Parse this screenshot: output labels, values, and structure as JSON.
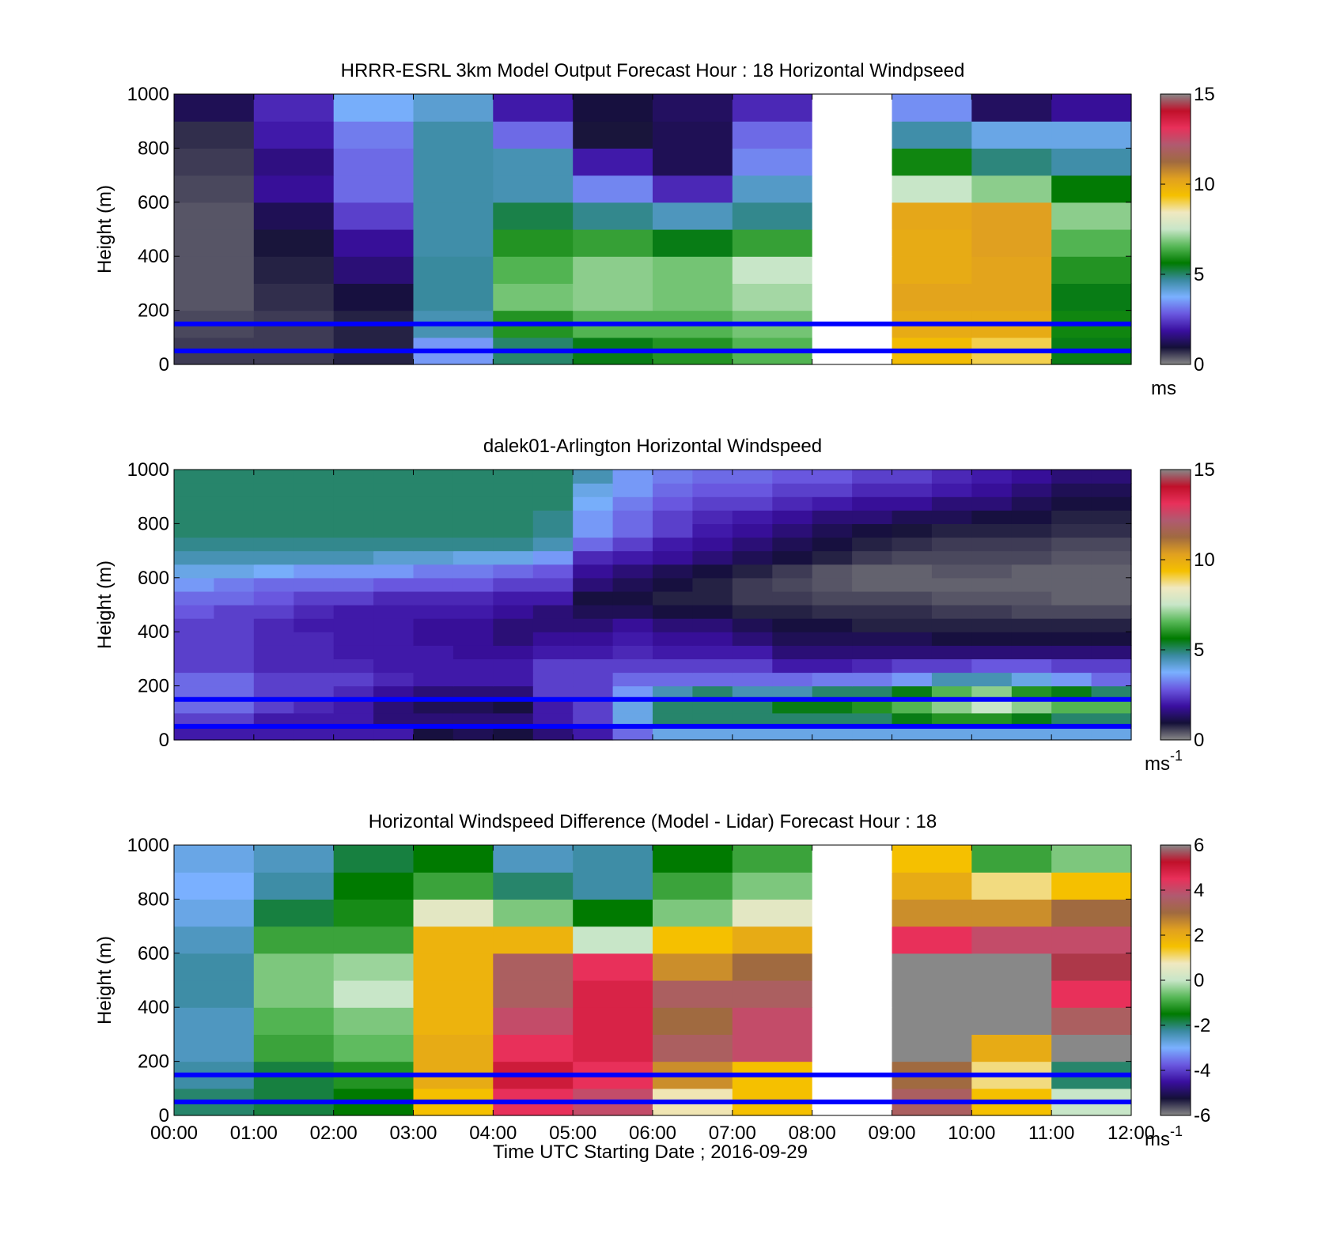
{
  "figure": {
    "xlabel": "Time UTC  Starting Date ; 2016-09-29"
  },
  "colors": {
    "cbar_stops_wind": [
      "#888888",
      "#141038",
      "#3a0fa0",
      "#6a58e0",
      "#7ab0ff",
      "#3a8aa0",
      "#007a00",
      "#58b858",
      "#c8e6c8",
      "#f0e8c0",
      "#f5c000",
      "#e0a020",
      "#a06a40",
      "#b05a70",
      "#e8305a",
      "#c0102a",
      "#888888"
    ],
    "overlay_line": "#0000ff"
  },
  "chart_data": [
    {
      "type": "heatmap",
      "title": "HRRR-ESRL 3km Model Output   Forecast Hour : 18 Horizontal Windpseed",
      "ylabel": "Height (m)",
      "ylim": [
        0,
        1000
      ],
      "yticks": [
        "0",
        "200",
        "400",
        "600",
        "800",
        "1000"
      ],
      "xlim": [
        0,
        12
      ],
      "xticks": [
        "00:00",
        "01:00",
        "02:00",
        "03:00",
        "04:00",
        "05:00",
        "06:00",
        "07:00",
        "08:00",
        "09:00",
        "10:00",
        "11:00",
        "12:00"
      ],
      "show_xtick_labels": false,
      "x": [
        0,
        1,
        2,
        3,
        4,
        5,
        6,
        7,
        8,
        9,
        10,
        11
      ],
      "heights": [
        50,
        150,
        250,
        350,
        450,
        550,
        650,
        750,
        850,
        950
      ],
      "z": [
        [
          0.6,
          0.6,
          0.8,
          3.5,
          5.0,
          5.5,
          6.0,
          6.5,
          null,
          9.5,
          9.0,
          5.5
        ],
        [
          0.5,
          0.6,
          0.8,
          4.5,
          6.0,
          6.5,
          6.5,
          6.8,
          null,
          10.0,
          10.0,
          5.8
        ],
        [
          0.4,
          0.7,
          1.0,
          4.7,
          6.8,
          7.0,
          6.8,
          7.2,
          null,
          10.2,
          10.2,
          5.5
        ],
        [
          0.4,
          0.8,
          1.5,
          4.7,
          6.5,
          7.0,
          6.8,
          7.5,
          null,
          10.0,
          10.2,
          6.0
        ],
        [
          0.4,
          0.9,
          1.8,
          4.6,
          6.0,
          6.2,
          5.5,
          6.2,
          null,
          10.0,
          10.3,
          6.5
        ],
        [
          0.4,
          1.2,
          2.5,
          4.6,
          5.2,
          4.8,
          4.4,
          4.8,
          null,
          10.1,
          10.3,
          7.0
        ],
        [
          0.5,
          1.8,
          3.0,
          4.6,
          4.5,
          3.3,
          2.2,
          4.3,
          null,
          7.5,
          7.0,
          5.6
        ],
        [
          0.6,
          1.6,
          3.0,
          4.6,
          4.5,
          2.0,
          1.2,
          3.3,
          null,
          5.8,
          4.9,
          4.6
        ],
        [
          0.7,
          2.0,
          3.2,
          4.6,
          3.0,
          0.9,
          1.2,
          3.0,
          null,
          4.6,
          4.0,
          4.0
        ],
        [
          1.2,
          2.2,
          3.8,
          4.2,
          2.0,
          1.0,
          1.3,
          2.2,
          null,
          3.4,
          1.3,
          1.8
        ]
      ],
      "colorbar": {
        "min": 0,
        "max": 15,
        "ticks": [
          "0",
          "5",
          "10",
          "15"
        ],
        "unit": "ms",
        "unit_sup": ""
      },
      "overlay_lines_height": [
        50,
        150
      ]
    },
    {
      "type": "heatmap",
      "title": "dalek01-Arlington  Horizontal Windspeed",
      "ylabel": "Height (m)",
      "ylim": [
        0,
        1000
      ],
      "yticks": [
        "0",
        "200",
        "400",
        "600",
        "800",
        "1000"
      ],
      "xlim": [
        0,
        12
      ],
      "xticks": [
        "00:00",
        "01:00",
        "02:00",
        "03:00",
        "04:00",
        "05:00",
        "06:00",
        "07:00",
        "08:00",
        "09:00",
        "10:00",
        "11:00",
        "12:00"
      ],
      "show_xtick_labels": false,
      "x": [
        0,
        0.5,
        1,
        1.5,
        2,
        2.5,
        3,
        3.5,
        4,
        4.5,
        5,
        5.5,
        6,
        6.5,
        7,
        7.5,
        8,
        8.5,
        9,
        9.5,
        10,
        10.5,
        11,
        11.5
      ],
      "heights": [
        25,
        75,
        125,
        175,
        225,
        275,
        325,
        375,
        425,
        475,
        525,
        575,
        625,
        675,
        725,
        775,
        825,
        875,
        925,
        975
      ],
      "z": [
        [
          2.0,
          2.0,
          2.0,
          2.0,
          2.0,
          2.0,
          1.0,
          1.2,
          1.0,
          1.5,
          2.0,
          3.0,
          4.0,
          4.0,
          4.0,
          4.0,
          4.0,
          4.0,
          4.0,
          4.0,
          4.0,
          4.0,
          4.0,
          4.0
        ],
        [
          2.5,
          2.5,
          2.0,
          2.0,
          2.0,
          1.5,
          1.5,
          1.5,
          1.5,
          2.0,
          2.5,
          4.0,
          5.0,
          5.0,
          5.0,
          5.0,
          5.0,
          5.0,
          5.5,
          6.0,
          6.0,
          5.5,
          5.0,
          5.0
        ],
        [
          3.0,
          3.0,
          2.5,
          2.2,
          2.0,
          1.5,
          1.2,
          1.2,
          1.0,
          2.0,
          2.5,
          4.0,
          5.0,
          5.0,
          5.0,
          5.5,
          5.5,
          6.0,
          6.5,
          7.0,
          7.5,
          7.0,
          6.5,
          6.5
        ],
        [
          3.0,
          3.0,
          2.5,
          2.5,
          2.2,
          1.8,
          1.5,
          1.5,
          1.5,
          2.5,
          2.5,
          3.5,
          4.5,
          5.0,
          4.5,
          4.5,
          5.0,
          5.0,
          5.5,
          6.5,
          7.0,
          6.0,
          5.5,
          5.0
        ],
        [
          3.0,
          3.0,
          2.5,
          2.5,
          2.5,
          2.2,
          2.0,
          2.0,
          2.0,
          2.5,
          2.5,
          3.0,
          3.0,
          3.0,
          3.0,
          3.0,
          3.2,
          3.2,
          3.5,
          4.5,
          4.5,
          4.0,
          3.5,
          3.0
        ],
        [
          2.5,
          2.5,
          2.2,
          2.2,
          2.2,
          2.0,
          2.0,
          2.0,
          2.0,
          2.5,
          2.5,
          2.5,
          2.5,
          2.5,
          2.5,
          2.0,
          2.0,
          2.2,
          2.5,
          2.5,
          2.8,
          2.8,
          2.5,
          2.5
        ],
        [
          2.5,
          2.5,
          2.2,
          2.2,
          2.0,
          2.0,
          2.0,
          1.8,
          1.8,
          2.0,
          2.0,
          2.2,
          2.0,
          2.0,
          2.0,
          1.5,
          1.5,
          1.5,
          1.5,
          1.5,
          1.5,
          1.5,
          1.5,
          1.5
        ],
        [
          2.5,
          2.5,
          2.2,
          2.2,
          2.0,
          2.0,
          1.8,
          1.8,
          1.5,
          1.8,
          1.8,
          2.0,
          1.8,
          1.8,
          1.5,
          1.2,
          1.2,
          1.2,
          1.2,
          1.0,
          1.0,
          1.0,
          1.0,
          1.0
        ],
        [
          2.5,
          2.5,
          2.2,
          2.0,
          2.0,
          2.0,
          1.8,
          1.8,
          1.5,
          1.5,
          1.5,
          1.8,
          1.5,
          1.5,
          1.2,
          1.0,
          1.0,
          0.8,
          0.8,
          0.8,
          0.8,
          0.8,
          0.8,
          0.8
        ],
        [
          2.8,
          2.5,
          2.5,
          2.2,
          2.0,
          2.0,
          2.0,
          2.0,
          1.8,
          1.5,
          1.2,
          1.2,
          1.0,
          1.0,
          0.8,
          0.8,
          0.7,
          0.7,
          0.7,
          0.6,
          0.6,
          0.5,
          0.5,
          0.5
        ],
        [
          3.0,
          3.0,
          2.8,
          2.5,
          2.5,
          2.2,
          2.2,
          2.2,
          2.0,
          2.0,
          1.0,
          1.0,
          0.8,
          0.8,
          0.6,
          0.6,
          0.5,
          0.5,
          0.5,
          0.4,
          0.4,
          0.4,
          0.3,
          0.3
        ],
        [
          3.5,
          3.2,
          3.0,
          3.0,
          3.0,
          2.8,
          2.8,
          2.8,
          2.5,
          2.5,
          1.5,
          1.2,
          1.0,
          0.8,
          0.6,
          0.5,
          0.4,
          0.3,
          0.3,
          0.3,
          0.3,
          0.3,
          0.3,
          0.3
        ],
        [
          4.0,
          4.0,
          3.8,
          3.5,
          3.5,
          3.5,
          3.2,
          3.2,
          3.0,
          2.8,
          1.8,
          1.5,
          1.2,
          1.0,
          0.8,
          0.6,
          0.4,
          0.3,
          0.3,
          0.4,
          0.4,
          0.3,
          0.3,
          0.3
        ],
        [
          4.5,
          4.5,
          4.5,
          4.5,
          4.5,
          4.2,
          4.2,
          4.0,
          4.0,
          3.5,
          2.2,
          2.0,
          1.8,
          1.5,
          1.2,
          1.0,
          0.8,
          0.6,
          0.5,
          0.5,
          0.5,
          0.5,
          0.4,
          0.4
        ],
        [
          4.8,
          4.8,
          4.8,
          4.8,
          4.8,
          4.8,
          4.8,
          4.8,
          4.8,
          4.5,
          3.0,
          2.5,
          2.0,
          1.8,
          1.5,
          1.2,
          1.0,
          0.8,
          0.7,
          0.6,
          0.6,
          0.6,
          0.5,
          0.5
        ],
        [
          5.0,
          5.0,
          5.0,
          5.0,
          5.0,
          5.0,
          5.0,
          5.0,
          5.0,
          4.8,
          3.5,
          3.0,
          2.5,
          2.0,
          1.8,
          1.5,
          1.2,
          1.0,
          0.9,
          0.8,
          0.8,
          0.8,
          0.7,
          0.7
        ],
        [
          5.0,
          5.0,
          5.0,
          5.0,
          5.0,
          5.0,
          5.0,
          5.0,
          5.0,
          4.8,
          3.5,
          3.0,
          2.5,
          2.2,
          2.0,
          1.8,
          1.5,
          1.5,
          1.2,
          1.2,
          1.0,
          1.0,
          0.8,
          0.8
        ],
        [
          5.0,
          5.0,
          5.0,
          5.0,
          5.0,
          5.0,
          5.0,
          5.0,
          5.0,
          5.0,
          3.8,
          3.2,
          2.8,
          2.5,
          2.5,
          2.2,
          2.0,
          1.8,
          1.8,
          1.5,
          1.5,
          1.2,
          1.0,
          1.0
        ],
        [
          5.0,
          5.0,
          5.0,
          5.0,
          5.0,
          5.0,
          5.0,
          5.0,
          5.0,
          5.0,
          4.0,
          3.5,
          3.0,
          2.8,
          2.8,
          2.5,
          2.5,
          2.2,
          2.2,
          2.0,
          1.8,
          1.5,
          1.2,
          1.2
        ],
        [
          5.0,
          5.0,
          5.0,
          5.0,
          5.0,
          5.0,
          5.0,
          5.0,
          5.0,
          5.0,
          4.5,
          3.5,
          3.2,
          3.0,
          3.0,
          2.8,
          2.8,
          2.5,
          2.5,
          2.2,
          2.0,
          1.8,
          1.5,
          1.5
        ]
      ],
      "colorbar": {
        "min": 0,
        "max": 15,
        "ticks": [
          "0",
          "5",
          "10",
          "15"
        ],
        "unit": "ms",
        "unit_sup": "-1"
      },
      "overlay_lines_height": [
        50,
        150
      ]
    },
    {
      "type": "heatmap",
      "title": "Horizontal Windspeed Difference (Model - Lidar) Forecast Hour : 18",
      "ylabel": "Height (m)",
      "ylim": [
        0,
        1000
      ],
      "yticks": [
        "0",
        "200",
        "400",
        "600",
        "800",
        "1000"
      ],
      "xlim": [
        0,
        12
      ],
      "xticks": [
        "00:00",
        "01:00",
        "02:00",
        "03:00",
        "04:00",
        "05:00",
        "06:00",
        "07:00",
        "08:00",
        "09:00",
        "10:00",
        "11:00",
        "12:00"
      ],
      "show_xtick_labels": true,
      "x": [
        0,
        1,
        2,
        3,
        4,
        5,
        6,
        7,
        8,
        9,
        10,
        11
      ],
      "heights": [
        50,
        150,
        250,
        350,
        450,
        550,
        650,
        750,
        850,
        950
      ],
      "z": [
        [
          -2.0,
          -1.8,
          -1.5,
          1.5,
          4.5,
          4.0,
          0.8,
          1.5,
          null,
          3.5,
          1.5,
          0.0
        ],
        [
          -2.3,
          -1.8,
          -1.2,
          2.0,
          5.0,
          4.5,
          2.5,
          1.5,
          null,
          3.0,
          1.0,
          -2.0
        ],
        [
          -2.5,
          -1.0,
          -0.7,
          2.0,
          4.5,
          4.8,
          3.5,
          4.0,
          null,
          -6.0,
          2.0,
          -6.0
        ],
        [
          -2.5,
          -0.8,
          -0.5,
          1.8,
          4.0,
          4.8,
          3.0,
          4.0,
          null,
          -6.0,
          -6.0,
          3.5
        ],
        [
          -2.3,
          -0.5,
          0.0,
          1.8,
          3.5,
          4.8,
          3.5,
          3.5,
          null,
          -6.0,
          -6.0,
          4.5
        ],
        [
          -2.3,
          -0.5,
          -0.3,
          1.8,
          3.5,
          4.5,
          2.5,
          3.0,
          null,
          -6.0,
          -6.0,
          5.5
        ],
        [
          -2.5,
          -1.0,
          -1.0,
          1.8,
          1.8,
          0.0,
          1.5,
          2.0,
          null,
          4.5,
          4.0,
          4.0
        ],
        [
          -2.8,
          -1.8,
          -1.3,
          0.5,
          -0.5,
          -1.5,
          -0.5,
          0.5,
          null,
          2.5,
          2.5,
          3.0
        ],
        [
          -3.0,
          -2.3,
          -1.5,
          -1.0,
          -2.0,
          -2.3,
          -1.0,
          -0.5,
          null,
          2.0,
          1.0,
          1.5
        ],
        [
          -2.8,
          -2.5,
          -1.8,
          -1.5,
          -2.5,
          -2.3,
          -1.5,
          -1.0,
          null,
          1.5,
          -1.0,
          -0.5
        ]
      ],
      "colorbar": {
        "min": -6,
        "max": 6,
        "ticks": [
          "-6",
          "-4",
          "-2",
          "0",
          "2",
          "4",
          "6"
        ],
        "unit": "ms",
        "unit_sup": "-1"
      },
      "overlay_lines_height": [
        50,
        150
      ]
    }
  ]
}
